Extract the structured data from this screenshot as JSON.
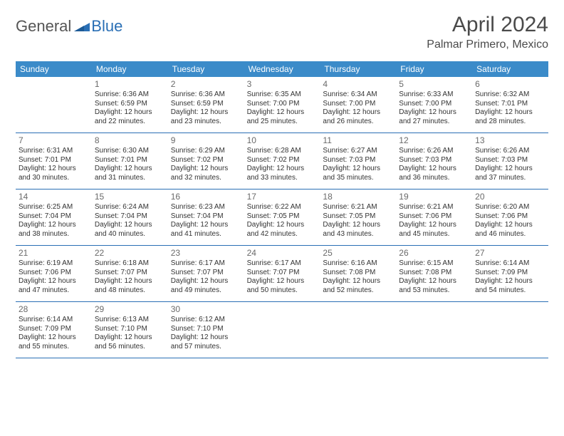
{
  "logo": {
    "text1": "General",
    "text2": "Blue"
  },
  "title": "April 2024",
  "location": "Palmar Primero, Mexico",
  "colors": {
    "header_bg": "#3b8bc9",
    "header_text": "#ffffff",
    "row_border": "#2a6fb5",
    "body_text": "#333333",
    "daynum_text": "#6a6a6a",
    "title_text": "#4a4a4a",
    "logo_blue": "#2a6fb5",
    "page_bg": "#ffffff"
  },
  "fonts": {
    "base": "Arial",
    "title_pt": 30,
    "location_pt": 16,
    "weekday_pt": 12,
    "daynum_pt": 12,
    "body_pt": 10
  },
  "layout": {
    "columns": 7,
    "col_labels": [
      "Sunday",
      "Monday",
      "Tuesday",
      "Wednesday",
      "Thursday",
      "Friday",
      "Saturday"
    ]
  },
  "weeks": [
    [
      null,
      {
        "n": "1",
        "sr": "Sunrise: 6:36 AM",
        "ss": "Sunset: 6:59 PM",
        "d1": "Daylight: 12 hours",
        "d2": "and 22 minutes."
      },
      {
        "n": "2",
        "sr": "Sunrise: 6:36 AM",
        "ss": "Sunset: 6:59 PM",
        "d1": "Daylight: 12 hours",
        "d2": "and 23 minutes."
      },
      {
        "n": "3",
        "sr": "Sunrise: 6:35 AM",
        "ss": "Sunset: 7:00 PM",
        "d1": "Daylight: 12 hours",
        "d2": "and 25 minutes."
      },
      {
        "n": "4",
        "sr": "Sunrise: 6:34 AM",
        "ss": "Sunset: 7:00 PM",
        "d1": "Daylight: 12 hours",
        "d2": "and 26 minutes."
      },
      {
        "n": "5",
        "sr": "Sunrise: 6:33 AM",
        "ss": "Sunset: 7:00 PM",
        "d1": "Daylight: 12 hours",
        "d2": "and 27 minutes."
      },
      {
        "n": "6",
        "sr": "Sunrise: 6:32 AM",
        "ss": "Sunset: 7:01 PM",
        "d1": "Daylight: 12 hours",
        "d2": "and 28 minutes."
      }
    ],
    [
      {
        "n": "7",
        "sr": "Sunrise: 6:31 AM",
        "ss": "Sunset: 7:01 PM",
        "d1": "Daylight: 12 hours",
        "d2": "and 30 minutes."
      },
      {
        "n": "8",
        "sr": "Sunrise: 6:30 AM",
        "ss": "Sunset: 7:01 PM",
        "d1": "Daylight: 12 hours",
        "d2": "and 31 minutes."
      },
      {
        "n": "9",
        "sr": "Sunrise: 6:29 AM",
        "ss": "Sunset: 7:02 PM",
        "d1": "Daylight: 12 hours",
        "d2": "and 32 minutes."
      },
      {
        "n": "10",
        "sr": "Sunrise: 6:28 AM",
        "ss": "Sunset: 7:02 PM",
        "d1": "Daylight: 12 hours",
        "d2": "and 33 minutes."
      },
      {
        "n": "11",
        "sr": "Sunrise: 6:27 AM",
        "ss": "Sunset: 7:03 PM",
        "d1": "Daylight: 12 hours",
        "d2": "and 35 minutes."
      },
      {
        "n": "12",
        "sr": "Sunrise: 6:26 AM",
        "ss": "Sunset: 7:03 PM",
        "d1": "Daylight: 12 hours",
        "d2": "and 36 minutes."
      },
      {
        "n": "13",
        "sr": "Sunrise: 6:26 AM",
        "ss": "Sunset: 7:03 PM",
        "d1": "Daylight: 12 hours",
        "d2": "and 37 minutes."
      }
    ],
    [
      {
        "n": "14",
        "sr": "Sunrise: 6:25 AM",
        "ss": "Sunset: 7:04 PM",
        "d1": "Daylight: 12 hours",
        "d2": "and 38 minutes."
      },
      {
        "n": "15",
        "sr": "Sunrise: 6:24 AM",
        "ss": "Sunset: 7:04 PM",
        "d1": "Daylight: 12 hours",
        "d2": "and 40 minutes."
      },
      {
        "n": "16",
        "sr": "Sunrise: 6:23 AM",
        "ss": "Sunset: 7:04 PM",
        "d1": "Daylight: 12 hours",
        "d2": "and 41 minutes."
      },
      {
        "n": "17",
        "sr": "Sunrise: 6:22 AM",
        "ss": "Sunset: 7:05 PM",
        "d1": "Daylight: 12 hours",
        "d2": "and 42 minutes."
      },
      {
        "n": "18",
        "sr": "Sunrise: 6:21 AM",
        "ss": "Sunset: 7:05 PM",
        "d1": "Daylight: 12 hours",
        "d2": "and 43 minutes."
      },
      {
        "n": "19",
        "sr": "Sunrise: 6:21 AM",
        "ss": "Sunset: 7:06 PM",
        "d1": "Daylight: 12 hours",
        "d2": "and 45 minutes."
      },
      {
        "n": "20",
        "sr": "Sunrise: 6:20 AM",
        "ss": "Sunset: 7:06 PM",
        "d1": "Daylight: 12 hours",
        "d2": "and 46 minutes."
      }
    ],
    [
      {
        "n": "21",
        "sr": "Sunrise: 6:19 AM",
        "ss": "Sunset: 7:06 PM",
        "d1": "Daylight: 12 hours",
        "d2": "and 47 minutes."
      },
      {
        "n": "22",
        "sr": "Sunrise: 6:18 AM",
        "ss": "Sunset: 7:07 PM",
        "d1": "Daylight: 12 hours",
        "d2": "and 48 minutes."
      },
      {
        "n": "23",
        "sr": "Sunrise: 6:17 AM",
        "ss": "Sunset: 7:07 PM",
        "d1": "Daylight: 12 hours",
        "d2": "and 49 minutes."
      },
      {
        "n": "24",
        "sr": "Sunrise: 6:17 AM",
        "ss": "Sunset: 7:07 PM",
        "d1": "Daylight: 12 hours",
        "d2": "and 50 minutes."
      },
      {
        "n": "25",
        "sr": "Sunrise: 6:16 AM",
        "ss": "Sunset: 7:08 PM",
        "d1": "Daylight: 12 hours",
        "d2": "and 52 minutes."
      },
      {
        "n": "26",
        "sr": "Sunrise: 6:15 AM",
        "ss": "Sunset: 7:08 PM",
        "d1": "Daylight: 12 hours",
        "d2": "and 53 minutes."
      },
      {
        "n": "27",
        "sr": "Sunrise: 6:14 AM",
        "ss": "Sunset: 7:09 PM",
        "d1": "Daylight: 12 hours",
        "d2": "and 54 minutes."
      }
    ],
    [
      {
        "n": "28",
        "sr": "Sunrise: 6:14 AM",
        "ss": "Sunset: 7:09 PM",
        "d1": "Daylight: 12 hours",
        "d2": "and 55 minutes."
      },
      {
        "n": "29",
        "sr": "Sunrise: 6:13 AM",
        "ss": "Sunset: 7:10 PM",
        "d1": "Daylight: 12 hours",
        "d2": "and 56 minutes."
      },
      {
        "n": "30",
        "sr": "Sunrise: 6:12 AM",
        "ss": "Sunset: 7:10 PM",
        "d1": "Daylight: 12 hours",
        "d2": "and 57 minutes."
      },
      null,
      null,
      null,
      null
    ]
  ]
}
